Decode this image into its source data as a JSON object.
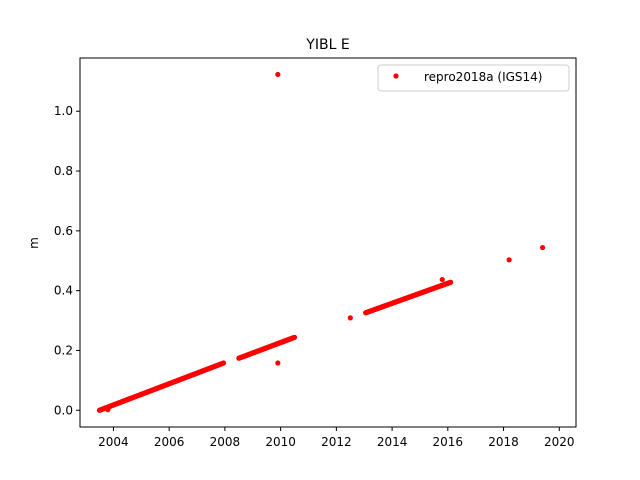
{
  "chart_data": {
    "type": "scatter",
    "title": "YIBL E",
    "xlabel": "",
    "ylabel": "m",
    "xlim": [
      2002.8,
      2020.6
    ],
    "ylim": [
      -0.056,
      1.178
    ],
    "xticks": [
      2004,
      2006,
      2008,
      2010,
      2012,
      2014,
      2016,
      2018,
      2020
    ],
    "yticks": [
      0.0,
      0.2,
      0.4,
      0.6,
      0.8,
      1.0
    ],
    "ytick_labels": [
      "0.0",
      "0.2",
      "0.4",
      "0.6",
      "0.8",
      "1.0"
    ],
    "grid": false,
    "legend_position": "upper right",
    "marker_color": "#ff0000",
    "series": [
      {
        "name": "repro2018a (IGS14)",
        "segments": [
          {
            "x_start": 2003.5,
            "x_end": 2007.95,
            "y_start": 0.0,
            "y_end": 0.158,
            "x_step": 0.02
          },
          {
            "x_start": 2008.5,
            "x_end": 2010.5,
            "y_start": 0.174,
            "y_end": 0.244,
            "x_step": 0.02
          },
          {
            "x_start": 2013.05,
            "x_end": 2016.1,
            "y_start": 0.326,
            "y_end": 0.428,
            "x_step": 0.02
          }
        ],
        "points": [
          {
            "x": 2003.8,
            "y": 0.002
          },
          {
            "x": 2009.9,
            "y": 1.123
          },
          {
            "x": 2009.9,
            "y": 0.158
          },
          {
            "x": 2012.5,
            "y": 0.309
          },
          {
            "x": 2015.8,
            "y": 0.437
          },
          {
            "x": 2018.2,
            "y": 0.503
          },
          {
            "x": 2019.4,
            "y": 0.544
          }
        ]
      }
    ]
  }
}
